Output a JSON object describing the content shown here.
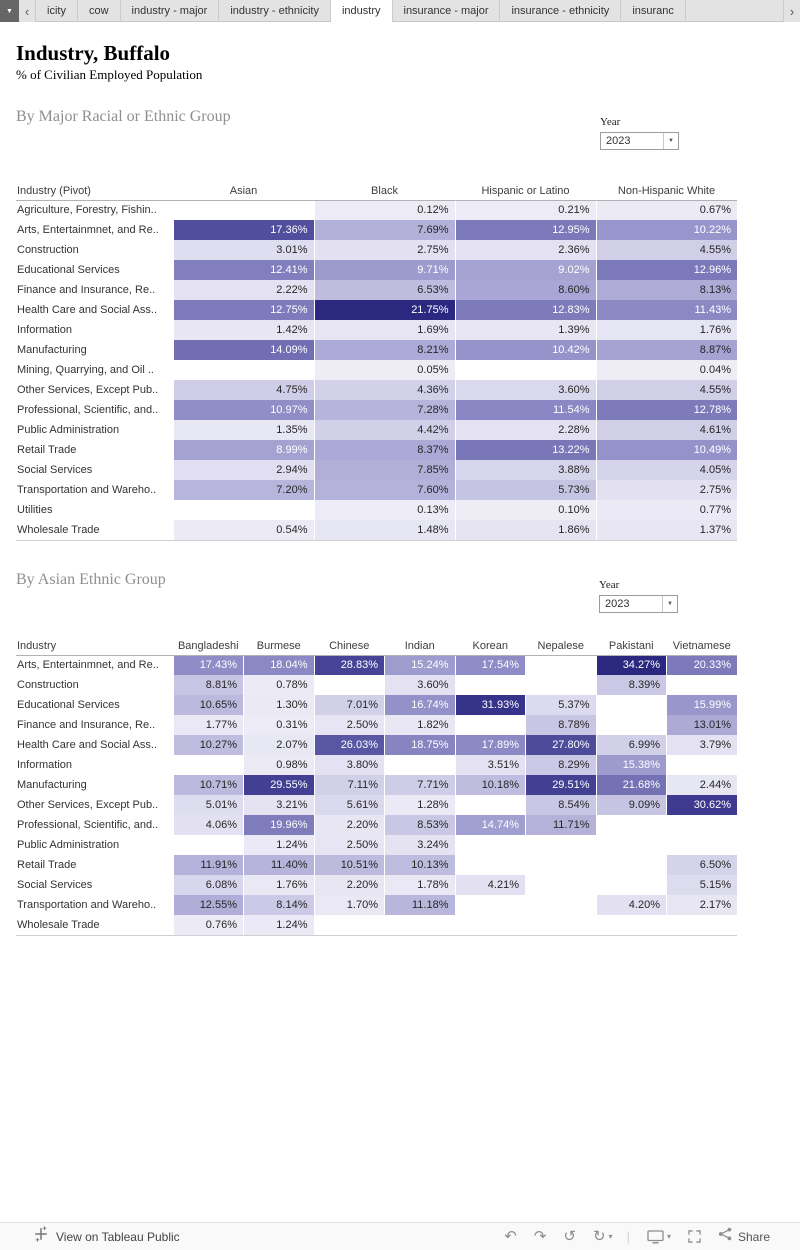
{
  "tabbar": {
    "tabs": [
      {
        "label": "icity",
        "active": false
      },
      {
        "label": "cow",
        "active": false
      },
      {
        "label": "industry - major",
        "active": false
      },
      {
        "label": "industry - ethnicity",
        "active": false
      },
      {
        "label": "industry",
        "active": true
      },
      {
        "label": "insurance - major",
        "active": false
      },
      {
        "label": "insurance - ethnicity",
        "active": false
      },
      {
        "label": "insuranc",
        "active": false
      }
    ]
  },
  "header": {
    "title": "Industry, Buffalo",
    "subtitle": "% of Civilian Employed Population"
  },
  "section1": {
    "heading": "By Major Racial or Ethnic Group",
    "year_filter": {
      "label": "Year",
      "value": "2023"
    }
  },
  "section2": {
    "heading": "By Asian Ethnic Group",
    "year_filter": {
      "label": "Year",
      "value": "2023"
    }
  },
  "footer": {
    "view_text": "View on Tableau Public",
    "share_label": "Share",
    "toolbar": [
      "undo-icon",
      "redo-icon",
      "reset-icon",
      "replay-icon",
      "caret-down-icon",
      "separator",
      "device-preview-icon",
      "caret-down-icon",
      "fullscreen-icon"
    ]
  },
  "colors": {
    "heatmap_stops": [
      "#eeedf6",
      "#e2e0f1",
      "#c9c7e4",
      "#aeabd7",
      "#918ec8",
      "#7673b6",
      "#5b58a4",
      "#403d92",
      "#2b2880"
    ],
    "tab_active_bg": "#ffffff",
    "tab_bg": "#e3e3e3"
  },
  "chart_data": [
    {
      "type": "heatmap",
      "name": "major-racial-ethnic-heatmap",
      "title": "By Major Racial or Ethnic Group",
      "unit": "% of Civilian Employed Population",
      "row_header": "Industry (Pivot)",
      "columns": [
        "Asian",
        "Black",
        "Hispanic or Latino",
        "Non-Hispanic White"
      ],
      "value_format": "0.00%",
      "color_max": 21.75,
      "rows": [
        {
          "label": "Agriculture, Forestry, Fishin..",
          "values": [
            null,
            0.12,
            0.21,
            0.67
          ]
        },
        {
          "label": "Arts, Entertainmnet, and Re..",
          "values": [
            17.36,
            7.69,
            12.95,
            10.22
          ]
        },
        {
          "label": "Construction",
          "values": [
            3.01,
            2.75,
            2.36,
            4.55
          ]
        },
        {
          "label": "Educational Services",
          "values": [
            12.41,
            9.71,
            9.02,
            12.96
          ]
        },
        {
          "label": "Finance and Insurance, Re..",
          "values": [
            2.22,
            6.53,
            8.6,
            8.13
          ]
        },
        {
          "label": "Health Care and Social Ass..",
          "values": [
            12.75,
            21.75,
            12.83,
            11.43
          ]
        },
        {
          "label": "Information",
          "values": [
            1.42,
            1.69,
            1.39,
            1.76
          ]
        },
        {
          "label": "Manufacturing",
          "values": [
            14.09,
            8.21,
            10.42,
            8.87
          ]
        },
        {
          "label": "Mining, Quarrying, and Oil ..",
          "values": [
            null,
            0.05,
            null,
            0.04
          ]
        },
        {
          "label": "Other Services, Except Pub..",
          "values": [
            4.75,
            4.36,
            3.6,
            4.55
          ]
        },
        {
          "label": "Professional, Scientific, and..",
          "values": [
            10.97,
            7.28,
            11.54,
            12.78
          ]
        },
        {
          "label": "Public Administration",
          "values": [
            1.35,
            4.42,
            2.28,
            4.61
          ]
        },
        {
          "label": "Retail Trade",
          "values": [
            8.99,
            8.37,
            13.22,
            10.49
          ]
        },
        {
          "label": "Social Services",
          "values": [
            2.94,
            7.85,
            3.88,
            4.05
          ]
        },
        {
          "label": "Transportation and Wareho..",
          "values": [
            7.2,
            7.6,
            5.73,
            2.75
          ]
        },
        {
          "label": "Utilities",
          "values": [
            null,
            0.13,
            0.1,
            0.77
          ]
        },
        {
          "label": "Wholesale Trade",
          "values": [
            0.54,
            1.48,
            1.86,
            1.37
          ]
        }
      ]
    },
    {
      "type": "heatmap",
      "name": "asian-ethnic-heatmap",
      "title": "By Asian Ethnic Group",
      "unit": "% of Civilian Employed Population",
      "row_header": "Industry",
      "columns": [
        "Bangladeshi",
        "Burmese",
        "Chinese",
        "Indian",
        "Korean",
        "Nepalese",
        "Pakistani",
        "Vietnamese"
      ],
      "value_format": "0.00%",
      "color_max": 34.27,
      "rows": [
        {
          "label": "Arts, Entertainmnet, and Re..",
          "values": [
            17.43,
            18.04,
            28.83,
            15.24,
            17.54,
            null,
            34.27,
            20.33
          ]
        },
        {
          "label": "Construction",
          "values": [
            8.81,
            0.78,
            null,
            3.6,
            null,
            null,
            8.39,
            null
          ]
        },
        {
          "label": "Educational Services",
          "values": [
            10.65,
            1.3,
            7.01,
            16.74,
            31.93,
            5.37,
            null,
            15.99
          ]
        },
        {
          "label": "Finance and Insurance, Re..",
          "values": [
            1.77,
            0.31,
            2.5,
            1.82,
            null,
            8.78,
            null,
            13.01
          ]
        },
        {
          "label": "Health Care and Social Ass..",
          "values": [
            10.27,
            2.07,
            26.03,
            18.75,
            17.89,
            27.8,
            6.99,
            3.79
          ]
        },
        {
          "label": "Information",
          "values": [
            null,
            0.98,
            3.8,
            null,
            3.51,
            8.29,
            15.38,
            null
          ]
        },
        {
          "label": "Manufacturing",
          "values": [
            10.71,
            29.55,
            7.11,
            7.71,
            10.18,
            29.51,
            21.68,
            2.44
          ]
        },
        {
          "label": "Other Services, Except Pub..",
          "values": [
            5.01,
            3.21,
            5.61,
            1.28,
            null,
            8.54,
            9.09,
            30.62
          ]
        },
        {
          "label": "Professional, Scientific, and..",
          "values": [
            4.06,
            19.96,
            2.2,
            8.53,
            14.74,
            11.71,
            null,
            null
          ]
        },
        {
          "label": "Public Administration",
          "values": [
            null,
            1.24,
            2.5,
            3.24,
            null,
            null,
            null,
            null
          ]
        },
        {
          "label": "Retail Trade",
          "values": [
            11.91,
            11.4,
            10.51,
            10.13,
            null,
            null,
            null,
            6.5
          ]
        },
        {
          "label": "Social Services",
          "values": [
            6.08,
            1.76,
            2.2,
            1.78,
            4.21,
            null,
            null,
            5.15
          ]
        },
        {
          "label": "Transportation and Wareho..",
          "values": [
            12.55,
            8.14,
            1.7,
            11.18,
            null,
            null,
            4.2,
            2.17
          ]
        },
        {
          "label": "Wholesale Trade",
          "values": [
            0.76,
            1.24,
            null,
            null,
            null,
            null,
            null,
            null
          ]
        }
      ]
    }
  ]
}
